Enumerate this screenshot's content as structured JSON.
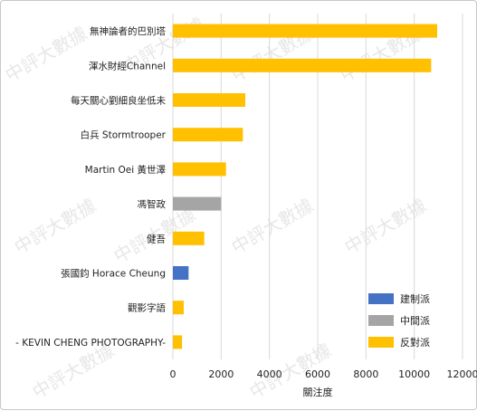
{
  "chart_data": {
    "type": "bar",
    "orientation": "horizontal",
    "categories": [
      "無神論者的巴別塔",
      "渾水財經Channel",
      "每天關心劉細良坐低未",
      "白兵 Stormtrooper",
      "Martin Oei 黃世澤",
      "馮智政",
      "健吾",
      "張國鈞 Horace Cheung",
      "觀影字語",
      "- KEVIN CHENG PHOTOGRAPHY-"
    ],
    "values": [
      10950,
      10700,
      3000,
      2900,
      2200,
      2000,
      1300,
      650,
      450,
      380
    ],
    "groups": [
      "反對派",
      "反對派",
      "反對派",
      "反對派",
      "反對派",
      "中間派",
      "反對派",
      "建制派",
      "反對派",
      "反對派"
    ],
    "xlabel": "關注度",
    "xlim": [
      0,
      12000
    ],
    "xticks": [
      0,
      2000,
      4000,
      6000,
      8000,
      10000,
      12000
    ],
    "grid": "vertical",
    "legend": {
      "position": "bottom-right",
      "entries": [
        {
          "name": "建制派",
          "color": "#4472c4"
        },
        {
          "name": "中間派",
          "color": "#a5a5a5"
        },
        {
          "name": "反對派",
          "color": "#ffc000"
        }
      ]
    },
    "watermark": "中評大數據"
  }
}
